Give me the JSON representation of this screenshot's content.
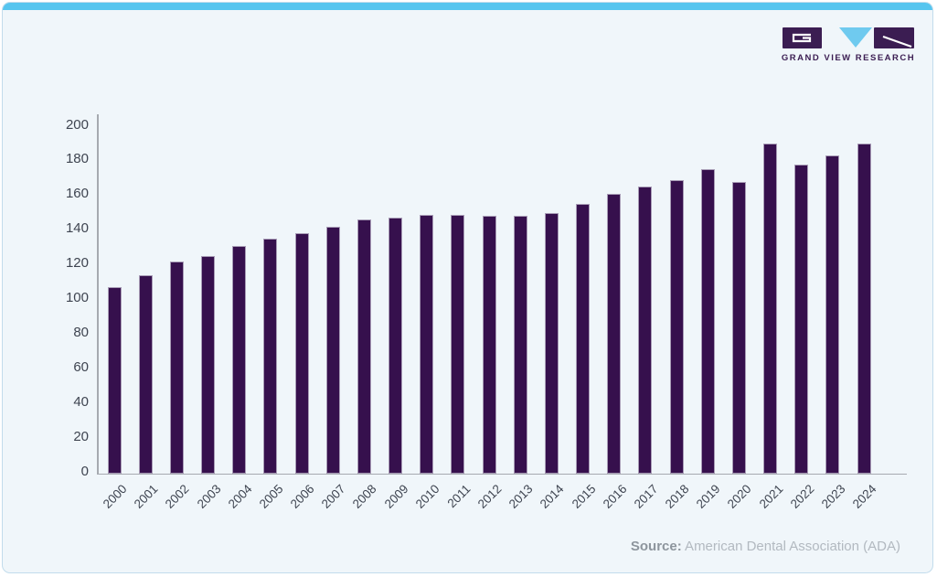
{
  "card": {
    "background": "#f0f6fa",
    "border_color": "#c2dcec",
    "topbar_color": "#56c5ef"
  },
  "logo": {
    "wordmark": "GRAND VIEW RESEARCH",
    "block_color": "#3b1d52",
    "triangle_color": "#6fcaef",
    "glyph_color": "#ffffff"
  },
  "chart_data": {
    "type": "bar",
    "categories": [
      "2000",
      "2001",
      "2002",
      "2003",
      "2004",
      "2005",
      "2006",
      "2007",
      "2008",
      "2009",
      "2010",
      "2011",
      "2012",
      "2013",
      "2014",
      "2015",
      "2016",
      "2017",
      "2018",
      "2019",
      "2020",
      "2021",
      "2022",
      "2023",
      "2024"
    ],
    "values": [
      106,
      113,
      121,
      124,
      130,
      134,
      137,
      141,
      145,
      146,
      148,
      148,
      147,
      147,
      149,
      154,
      160,
      164,
      168,
      174,
      167,
      189,
      177,
      182,
      189
    ],
    "ylim": [
      0,
      200
    ],
    "ytick_step": 20,
    "ytick_labels": [
      "200",
      "180",
      "160",
      "140",
      "120",
      "100",
      "80",
      "60",
      "40",
      "20",
      "0"
    ],
    "grid": false,
    "legend_position": "none",
    "bar_color": "#36104d",
    "bar_stroke_color": "#a89cb6",
    "axis_color": "#a6aab0",
    "tick_label_color": "#3e4450"
  },
  "source": {
    "label": "Source:",
    "text": " American Dental Association (ADA)",
    "label_color": "#8d959d",
    "text_color": "#b2b9c0"
  }
}
